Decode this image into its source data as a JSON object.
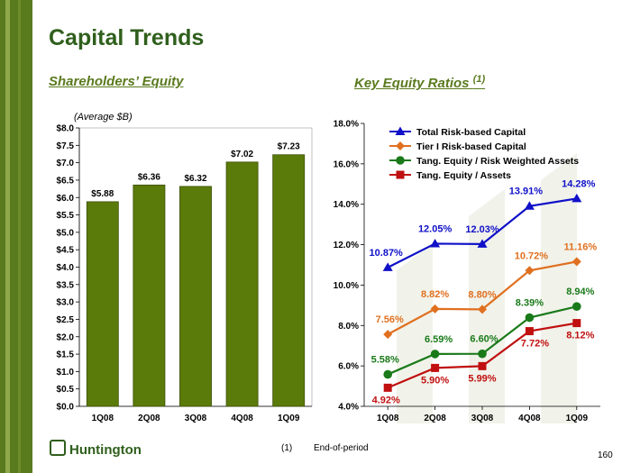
{
  "page": {
    "title": "Capital Trends",
    "left_subtitle": "Shareholders’ Equity",
    "right_subtitle": "Key Equity Ratios",
    "right_subtitle_sup": "(1)",
    "left_note": "(Average $B)",
    "logo_text": "Huntington",
    "footnote_num": "(1)",
    "footnote_text": "End-of-period",
    "page_number": "160"
  },
  "colors": {
    "bar": "#5a7a0a",
    "brand": "#2f5f1c",
    "total_risk": "#1010c8",
    "tier1": "#e07020",
    "tang_rwa": "#1a7a1a",
    "tang_assets": "#c01010"
  },
  "chart_data": [
    {
      "type": "bar",
      "categories": [
        "1Q08",
        "2Q08",
        "3Q08",
        "4Q08",
        "1Q09"
      ],
      "values": [
        5.88,
        6.36,
        6.32,
        7.02,
        7.23
      ],
      "value_labels": [
        "$5.88",
        "$6.36",
        "$6.32",
        "$7.02",
        "$7.23"
      ],
      "ylim": [
        0,
        8
      ],
      "yticks": [
        "$0.0",
        "$0.5",
        "$1.0",
        "$1.5",
        "$2.0",
        "$2.5",
        "$3.0",
        "$3.5",
        "$4.0",
        "$4.5",
        "$5.0",
        "$5.5",
        "$6.0",
        "$6.5",
        "$7.0",
        "$7.5",
        "$8.0"
      ]
    },
    {
      "type": "line",
      "categories": [
        "1Q08",
        "2Q08",
        "3Q08",
        "4Q08",
        "1Q09"
      ],
      "ylim": [
        4,
        18
      ],
      "yticks": [
        "4.0%",
        "6.0%",
        "8.0%",
        "10.0%",
        "12.0%",
        "14.0%",
        "16.0%",
        "18.0%"
      ],
      "legend_position": "top-center",
      "series": [
        {
          "name": "Total Risk-based Capital",
          "values": [
            10.87,
            12.05,
            12.03,
            13.91,
            14.28
          ],
          "labels": [
            "10.87%",
            "12.05%",
            "12.03%",
            "13.91%",
            "14.28%"
          ],
          "marker": "triangle"
        },
        {
          "name": "Tier I Risk-based Capital",
          "values": [
            7.56,
            8.82,
            8.8,
            10.72,
            11.16
          ],
          "labels": [
            "7.56%",
            "8.82%",
            "8.80%",
            "10.72%",
            "11.16%"
          ],
          "marker": "diamond"
        },
        {
          "name": "Tang. Equity / Risk Weighted Assets",
          "values": [
            5.58,
            6.59,
            6.6,
            8.39,
            8.94
          ],
          "labels": [
            "5.58%",
            "6.59%",
            "6.60%",
            "8.39%",
            "8.94%"
          ],
          "marker": "circle"
        },
        {
          "name": "Tang. Equity / Assets",
          "values": [
            4.92,
            5.9,
            5.99,
            7.72,
            8.12
          ],
          "labels": [
            "4.92%",
            "5.90%",
            "5.99%",
            "7.72%",
            "8.12%"
          ],
          "marker": "square"
        }
      ]
    }
  ]
}
